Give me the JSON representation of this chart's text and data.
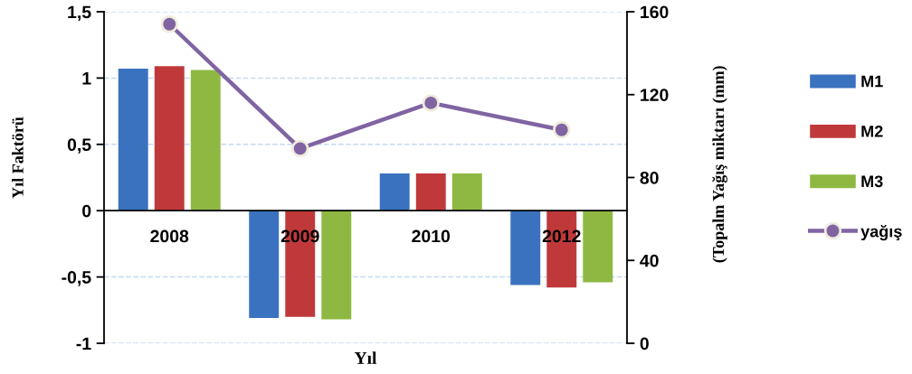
{
  "chart_data": {
    "type": "bar",
    "categories": [
      "2008",
      "2009",
      "2010",
      "2012"
    ],
    "xlabel": "Yıl",
    "ylabel": "Yıl Faktörü",
    "y2label": "(Topalm Yağış miktarı (mm)",
    "ylim": [
      -1,
      1.5
    ],
    "yticks": [
      -1,
      {
        "value": -0.5,
        "label": "-0,5"
      },
      0,
      {
        "value": 0.5,
        "label": "0,5"
      },
      1,
      {
        "value": 1.5,
        "label": "1,5"
      }
    ],
    "y2lim": [
      0,
      160
    ],
    "y2ticks": [
      0,
      40,
      80,
      120,
      160
    ],
    "grid": "y",
    "legend": "right",
    "series": [
      {
        "name": "M1",
        "color": "#3a72bf",
        "values": [
          1.07,
          -0.81,
          0.28,
          -0.56
        ]
      },
      {
        "name": "M2",
        "color": "#c0393a",
        "values": [
          1.09,
          -0.8,
          0.28,
          -0.58
        ]
      },
      {
        "name": "M3",
        "color": "#8fb843",
        "values": [
          1.06,
          -0.82,
          0.28,
          -0.54
        ]
      },
      {
        "name": "yağış",
        "type": "line",
        "axis": "y2",
        "color": "#8064a2",
        "marker": "circle",
        "line_style": "solid",
        "values": [
          154,
          94,
          116,
          103
        ]
      }
    ]
  }
}
